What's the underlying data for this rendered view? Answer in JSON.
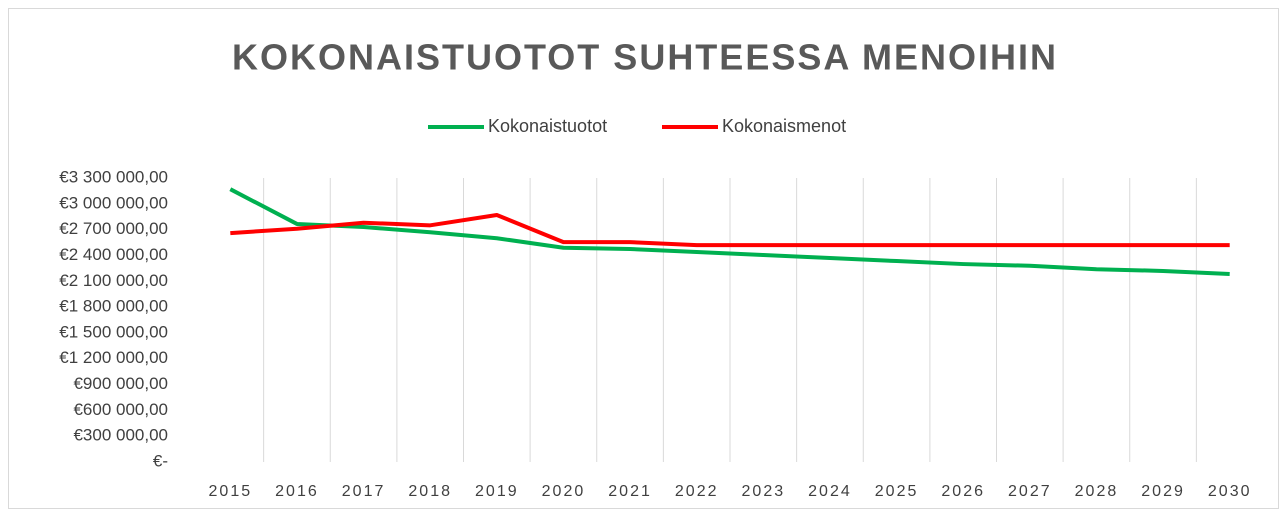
{
  "chart_data": {
    "type": "line",
    "title": "KOKONAISTUOTOT SUHTEESSA MENOIHIN",
    "categories": [
      "2015",
      "2016",
      "2017",
      "2018",
      "2019",
      "2020",
      "2021",
      "2022",
      "2023",
      "2024",
      "2025",
      "2026",
      "2027",
      "2028",
      "2029",
      "2030"
    ],
    "series": [
      {
        "name": "Kokonaistuotot",
        "color": "#00b050",
        "values": [
          3170000,
          2766000,
          2730000,
          2670000,
          2600000,
          2490000,
          2475000,
          2440000,
          2405000,
          2370000,
          2335000,
          2300000,
          2280000,
          2240000,
          2220000,
          2185000
        ]
      },
      {
        "name": "Kokonaismenot",
        "color": "#ff0000",
        "values": [
          2660000,
          2710000,
          2780000,
          2750000,
          2870000,
          2555000,
          2555000,
          2520000,
          2520000,
          2520000,
          2520000,
          2520000,
          2520000,
          2520000,
          2520000,
          2520000
        ]
      }
    ],
    "ylim": [
      0,
      3300000
    ],
    "yticks": [
      {
        "value": 0,
        "label": "€-"
      },
      {
        "value": 300000,
        "label": "€300 000,00"
      },
      {
        "value": 600000,
        "label": "€600 000,00"
      },
      {
        "value": 900000,
        "label": "€900 000,00"
      },
      {
        "value": 1200000,
        "label": "€1 200 000,00"
      },
      {
        "value": 1500000,
        "label": "€1 500 000,00"
      },
      {
        "value": 1800000,
        "label": "€1 800 000,00"
      },
      {
        "value": 2100000,
        "label": "€2 100 000,00"
      },
      {
        "value": 2400000,
        "label": "€2 400 000,00"
      },
      {
        "value": 2700000,
        "label": "€2 700 000,00"
      },
      {
        "value": 3000000,
        "label": "€3 000 000,00"
      },
      {
        "value": 3300000,
        "label": "€3 300 000,00"
      }
    ],
    "legend": "top"
  }
}
